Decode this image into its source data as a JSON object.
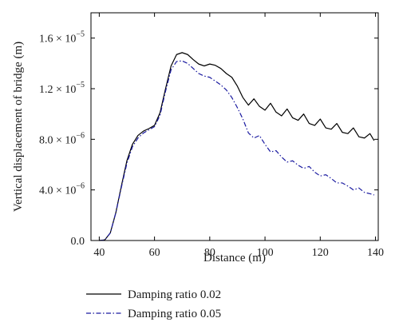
{
  "chart_data": {
    "type": "line",
    "xlabel": "Distance (m)",
    "ylabel": "Vertical displacement of bridge (m)",
    "xlim": [
      37,
      141
    ],
    "ylim": [
      0,
      1.8e-05
    ],
    "x_ticks": [
      40,
      60,
      80,
      100,
      120,
      140
    ],
    "x_tick_labels": [
      "40",
      "60",
      "80",
      "100",
      "120",
      "140"
    ],
    "y_ticks": [
      0,
      4e-06,
      8e-06,
      1.2e-05,
      1.6e-05
    ],
    "y_tick_labels": [
      {
        "mantissa": "0.0",
        "exponent": ""
      },
      {
        "mantissa": "4.0 × 10",
        "exponent": "−6"
      },
      {
        "mantissa": "8.0 × 10",
        "exponent": "−6"
      },
      {
        "mantissa": "1.2 × 10",
        "exponent": "−5"
      },
      {
        "mantissa": "1.6 × 10",
        "exponent": "−5"
      }
    ],
    "grid": false,
    "legend_position": "bottom",
    "series": [
      {
        "name": "Damping ratio 0.02",
        "color": "#000000",
        "dash": "solid",
        "x": [
          40,
          42,
          44,
          46,
          48,
          50,
          52,
          54,
          56,
          58,
          60,
          62,
          64,
          66,
          68,
          70,
          72,
          74,
          76,
          78,
          80,
          82,
          84,
          86,
          88,
          90,
          92,
          94,
          96,
          98,
          100,
          102,
          104,
          106,
          108,
          110,
          112,
          114,
          116,
          118,
          120,
          122,
          124,
          126,
          128,
          130,
          132,
          134,
          136,
          138,
          139.5
        ],
        "y": [
          0.0,
          5e-08,
          6e-07,
          2.2e-06,
          4.3e-06,
          6.3e-06,
          7.6e-06,
          8.3e-06,
          8.65e-06,
          8.85e-06,
          9.1e-06,
          1.01e-05,
          1.2e-05,
          1.38e-05,
          1.47e-05,
          1.485e-05,
          1.47e-05,
          1.43e-05,
          1.395e-05,
          1.38e-05,
          1.395e-05,
          1.385e-05,
          1.36e-05,
          1.32e-05,
          1.29e-05,
          1.22e-05,
          1.13e-05,
          1.07e-05,
          1.12e-05,
          1.06e-05,
          1.03e-05,
          1.085e-05,
          1.015e-05,
          9.85e-06,
          1.04e-05,
          9.7e-06,
          9.5e-06,
          1e-05,
          9.25e-06,
          9.1e-06,
          9.6e-06,
          8.9e-06,
          8.8e-06,
          9.25e-06,
          8.55e-06,
          8.45e-06,
          8.9e-06,
          8.2e-06,
          8.1e-06,
          8.45e-06,
          7.9e-06
        ]
      },
      {
        "name": "Damping ratio 0.05",
        "color": "#1a1aa0",
        "dash": "dashdot",
        "x": [
          40,
          42,
          44,
          46,
          48,
          50,
          52,
          54,
          56,
          58,
          60,
          62,
          64,
          66,
          68,
          70,
          72,
          74,
          76,
          78,
          80,
          82,
          84,
          86,
          88,
          90,
          92,
          94,
          96,
          98,
          100,
          102,
          104,
          106,
          108,
          110,
          112,
          114,
          116,
          118,
          120,
          122,
          124,
          126,
          128,
          130,
          132,
          134,
          136,
          138,
          139.5
        ],
        "y": [
          0.0,
          5e-08,
          6e-07,
          2.2e-06,
          4.2e-06,
          6.1e-06,
          7.4e-06,
          8.1e-06,
          8.5e-06,
          8.75e-06,
          9e-06,
          9.9e-06,
          1.18e-05,
          1.35e-05,
          1.415e-05,
          1.42e-05,
          1.4e-05,
          1.36e-05,
          1.32e-05,
          1.3e-05,
          1.29e-05,
          1.26e-05,
          1.23e-05,
          1.19e-05,
          1.13e-05,
          1.05e-05,
          9.6e-06,
          8.5e-06,
          8.1e-06,
          8.3e-06,
          7.6e-06,
          7e-06,
          7.1e-06,
          6.6e-06,
          6.2e-06,
          6.3e-06,
          5.95e-06,
          5.7e-06,
          5.85e-06,
          5.4e-06,
          5.1e-06,
          5.2e-06,
          4.9e-06,
          4.55e-06,
          4.55e-06,
          4.3e-06,
          4e-06,
          4.15e-06,
          3.8e-06,
          3.7e-06,
          3.6e-06
        ]
      }
    ]
  }
}
